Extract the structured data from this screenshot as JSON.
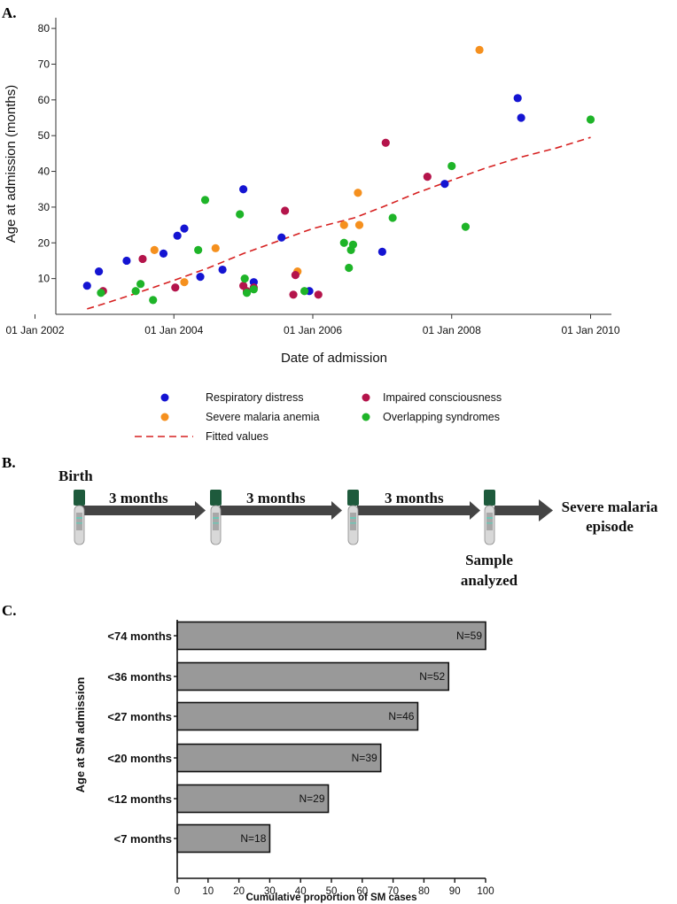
{
  "panel_labels": {
    "a": "A.",
    "b": "B.",
    "c": "C."
  },
  "colors": {
    "Respiratory distress": "#1414d2",
    "Severe malaria anemia": "#f5901e",
    "Impaired consciousness": "#b4144b",
    "Overlapping syndromes": "#1eb428",
    "fitted": "#d62020",
    "bar_fill": "#999999",
    "tube_cap": "#1e5a3c"
  },
  "timeline": {
    "start_label": "Birth",
    "interval_labels": [
      "3 months",
      "3 months",
      "3 months"
    ],
    "sample_label_line1": "Sample",
    "sample_label_line2": "analyzed",
    "end_label_line1": "Severe malaria",
    "end_label_line2": "episode"
  },
  "chart_data": [
    {
      "type": "scatter",
      "title": "",
      "xlabel": "Date of admission",
      "ylabel": "Age at admission (months)",
      "xlim": [
        2002.3,
        2010.3
      ],
      "ylim": [
        0,
        83
      ],
      "yticks": [
        10,
        20,
        30,
        40,
        50,
        60,
        70,
        80
      ],
      "xticks": [
        2002,
        2004,
        2006,
        2008,
        2010
      ],
      "xtick_labels": [
        "01 Jan 2002",
        "01 Jan 2004",
        "01 Jan 2006",
        "01 Jan 2008",
        "01 Jan 2010"
      ],
      "legend": [
        "Respiratory distress",
        "Impaired consciousness",
        "Severe malaria anemia",
        "Overlapping syndromes",
        "Fitted values"
      ],
      "series": [
        {
          "name": "Respiratory distress",
          "points": [
            [
              2002.75,
              8
            ],
            [
              2002.92,
              12
            ],
            [
              2003.32,
              15
            ],
            [
              2003.85,
              17
            ],
            [
              2004.05,
              22
            ],
            [
              2004.15,
              24
            ],
            [
              2004.38,
              10.5
            ],
            [
              2004.7,
              12.5
            ],
            [
              2005.0,
              35
            ],
            [
              2005.15,
              9
            ],
            [
              2005.55,
              21.5
            ],
            [
              2005.95,
              6.5
            ],
            [
              2007.0,
              17.5
            ],
            [
              2007.9,
              36.5
            ],
            [
              2008.95,
              60.5
            ],
            [
              2009.0,
              55
            ]
          ]
        },
        {
          "name": "Severe malaria anemia",
          "points": [
            [
              2003.72,
              18
            ],
            [
              2004.15,
              9
            ],
            [
              2004.6,
              18.5
            ],
            [
              2005.78,
              12
            ],
            [
              2006.45,
              25
            ],
            [
              2006.65,
              34
            ],
            [
              2006.67,
              25
            ],
            [
              2008.4,
              74
            ]
          ]
        },
        {
          "name": "Impaired consciousness",
          "points": [
            [
              2002.98,
              6.5
            ],
            [
              2003.55,
              15.5
            ],
            [
              2004.02,
              7.5
            ],
            [
              2005.0,
              8
            ],
            [
              2005.05,
              6.5
            ],
            [
              2005.15,
              7.5
            ],
            [
              2005.6,
              29
            ],
            [
              2005.72,
              5.5
            ],
            [
              2005.75,
              11
            ],
            [
              2006.08,
              5.5
            ],
            [
              2007.05,
              48
            ],
            [
              2007.65,
              38.5
            ]
          ]
        },
        {
          "name": "Overlapping syndromes",
          "points": [
            [
              2002.95,
              6
            ],
            [
              2003.45,
              6.5
            ],
            [
              2003.52,
              8.5
            ],
            [
              2003.7,
              4
            ],
            [
              2004.35,
              18
            ],
            [
              2004.45,
              32
            ],
            [
              2004.95,
              28
            ],
            [
              2005.02,
              10
            ],
            [
              2005.05,
              6
            ],
            [
              2005.15,
              7
            ],
            [
              2005.88,
              6.5
            ],
            [
              2006.45,
              20
            ],
            [
              2006.52,
              13
            ],
            [
              2006.55,
              18
            ],
            [
              2006.58,
              19.5
            ],
            [
              2007.15,
              27
            ],
            [
              2008.0,
              41.5
            ],
            [
              2008.2,
              24.5
            ],
            [
              2010.0,
              54.5
            ]
          ]
        },
        {
          "name": "Fitted values",
          "style": "dashed-line",
          "points": [
            [
              2002.75,
              1.5
            ],
            [
              2003.0,
              3
            ],
            [
              2003.4,
              5.5
            ],
            [
              2004.0,
              9.5
            ],
            [
              2004.5,
              13
            ],
            [
              2005.0,
              17
            ],
            [
              2005.5,
              20.5
            ],
            [
              2006.0,
              24
            ],
            [
              2006.6,
              27
            ],
            [
              2007.0,
              30
            ],
            [
              2007.5,
              34
            ],
            [
              2008.0,
              37.5
            ],
            [
              2008.5,
              41
            ],
            [
              2009.0,
              44
            ],
            [
              2009.5,
              46.5
            ],
            [
              2010.0,
              49.5
            ]
          ]
        }
      ]
    },
    {
      "type": "bar",
      "orientation": "horizontal",
      "categories": [
        "<74 months",
        "<36 months",
        "<27 months",
        "<20 months",
        "<12 months",
        "<7 months"
      ],
      "values": [
        100,
        88,
        78,
        66,
        49,
        30
      ],
      "labels": [
        "N=59",
        "N=52",
        "N=46",
        "N=39",
        "N=29",
        "N=18"
      ],
      "xlabel": "Cumulative proportion of SM cases",
      "ylabel": "Age at SM admission",
      "xlim": [
        0,
        100
      ],
      "xticks": [
        0,
        10,
        20,
        30,
        40,
        50,
        60,
        70,
        80,
        90,
        100
      ]
    }
  ]
}
